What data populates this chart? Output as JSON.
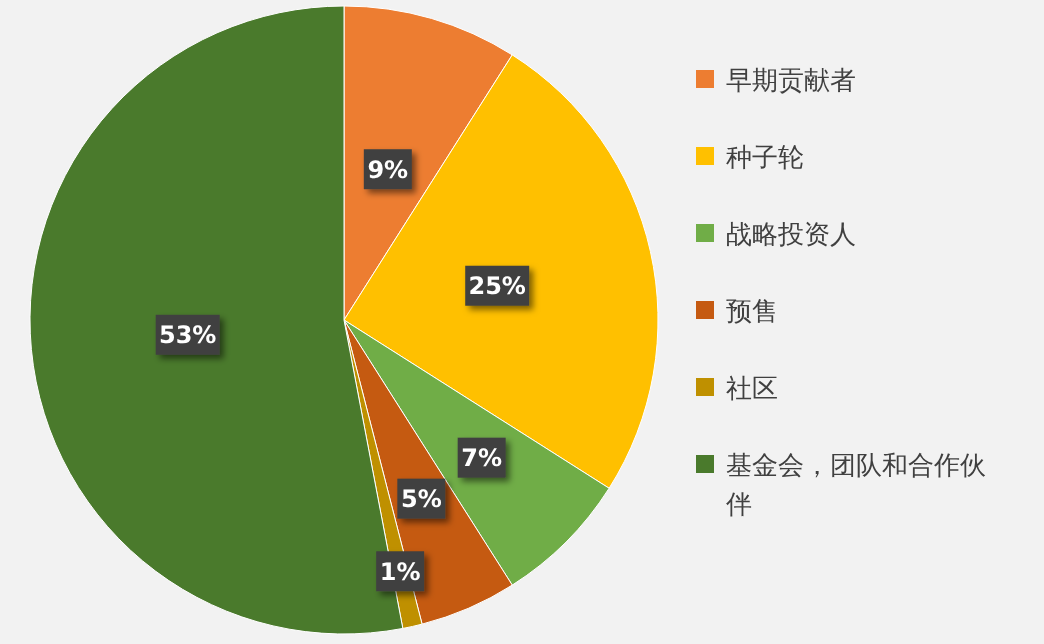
{
  "chart_data": {
    "type": "pie",
    "categories": [
      "早期贡献者",
      "种子轮",
      "战略投资人",
      "预售",
      "社区",
      "基金会，团队和合作伙伴"
    ],
    "values": [
      9,
      25,
      7,
      5,
      1,
      53
    ],
    "colors": [
      "#ed7d31",
      "#ffc000",
      "#70ad47",
      "#c55a11",
      "#bf9000",
      "#4a7a2c"
    ],
    "value_labels": [
      "9%",
      "25%",
      "7%",
      "5%",
      "1%",
      "53%"
    ],
    "legend": "right"
  }
}
